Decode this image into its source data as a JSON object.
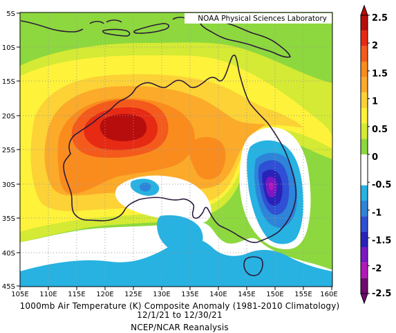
{
  "map": {
    "credit": "NOAA Physical Sciences Laboratory",
    "lon_ticks": [
      "105E",
      "110E",
      "115E",
      "120E",
      "125E",
      "130E",
      "135E",
      "140E",
      "145E",
      "150E",
      "155E",
      "160E"
    ],
    "lat_ticks": [
      "5S",
      "10S",
      "15S",
      "20S",
      "25S",
      "30S",
      "35S",
      "40S",
      "45S"
    ],
    "extent": {
      "lon_min": 105,
      "lon_max": 160,
      "lat_min": -45,
      "lat_max": -5
    }
  },
  "colorbar": {
    "labels": [
      "2.5",
      "2",
      "1.5",
      "1",
      "0.5",
      "0",
      "-0.5",
      "-1",
      "-1.5",
      "-2",
      "-2.5"
    ],
    "colors_top_to_bottom": [
      "#b70d0d",
      "#e62a14",
      "#f45a1c",
      "#fa8c1e",
      "#fbaa2a",
      "#fcd236",
      "#fef23a",
      "#d4ea34",
      "#8dd83e",
      "#ffffff",
      "#ffffff",
      "#27b2e2",
      "#2e84d8",
      "#2f4fd4",
      "#2922b8",
      "#7a18c4",
      "#b218b8",
      "#6e0a6e"
    ]
  },
  "caption": {
    "line1": "1000mb Air Temperature (K) Composite Anomaly (1981-2010 Climatology)",
    "line2": "12/1/21  to 12/30/21",
    "line3": "NCEP/NCAR Reanalysis"
  }
}
